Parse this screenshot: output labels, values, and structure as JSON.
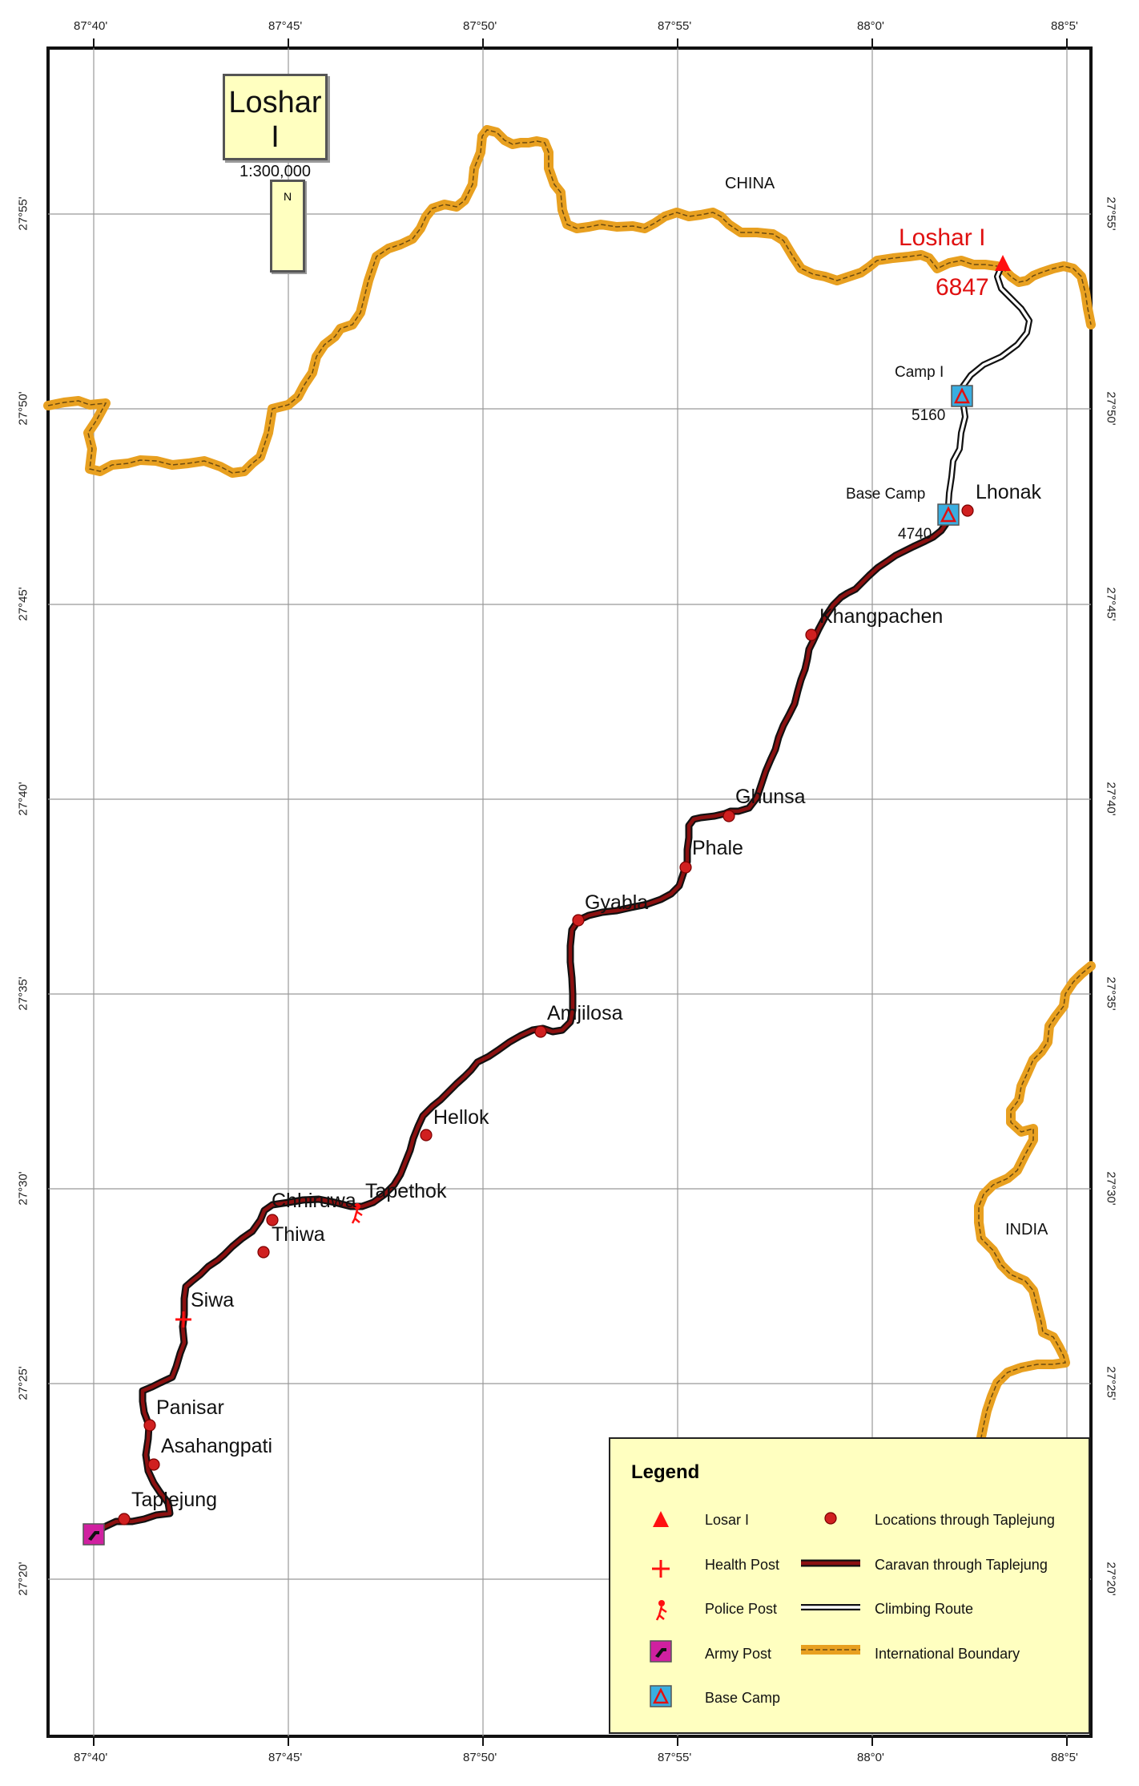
{
  "title": "Loshar I",
  "scale": "1:300,000",
  "north_label": "N",
  "countries": {
    "north": "CHINA",
    "south": "INDIA"
  },
  "peak": {
    "name": "Loshar I",
    "elevation": "6847"
  },
  "camps": {
    "camp1": {
      "label": "Camp I",
      "elevation": "5160"
    },
    "base": {
      "label": "Base Camp",
      "elevation": "4740"
    }
  },
  "places": {
    "lhonak": "Lhonak",
    "khangpachen": "Khangpachen",
    "ghunsa": "Ghunsa",
    "phale": "Phale",
    "gyabla": "Gyabla",
    "amjilosa": "Amjilosa",
    "hellok": "Hellok",
    "chhiruwa": "Chhiruwa",
    "tapethok": "Tapethok",
    "thiwa": "Thiwa",
    "siwa": "Siwa",
    "panisar": "Panisar",
    "asahangpati": "Asahangpati",
    "taplejung": "Taplejung"
  },
  "grid": {
    "longitudes": [
      "87°40'",
      "87°45'",
      "87°50'",
      "87°55'",
      "88°0'",
      "88°5'"
    ],
    "latitudes": [
      "27°55'",
      "27°50'",
      "27°45'",
      "27°40'",
      "27°35'",
      "27°30'",
      "27°25'",
      "27°20'"
    ]
  },
  "legend": {
    "title": "Legend",
    "items": {
      "peak": "Losar I",
      "locations": "Locations through Taplejung",
      "health": "Health Post",
      "caravan": "Caravan through Taplejung",
      "police": "Police Post",
      "climbing": "Climbing Route",
      "army": "Army Post",
      "boundary": "International Boundary",
      "base": "Base Camp"
    }
  },
  "colors": {
    "boundary": "#e8a020",
    "caravan": "#8b1010",
    "location": "#d02020",
    "peak": "#ff1010",
    "camp": "#3aaee0",
    "army": "#d020a0",
    "panel": "#ffffc0"
  }
}
